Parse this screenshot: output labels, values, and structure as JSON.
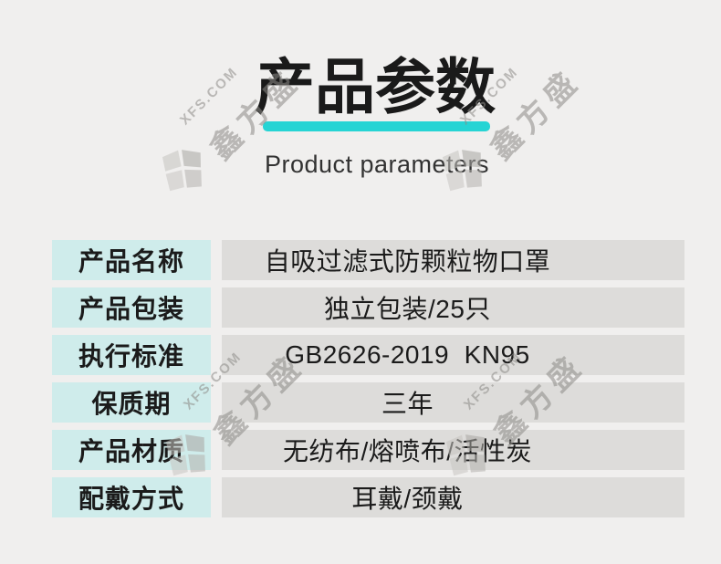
{
  "header": {
    "title": "产品参数",
    "subtitle": "Product parameters"
  },
  "table": {
    "rows": [
      {
        "label": "产品名称",
        "value": "自吸过滤式防颗粒物口罩"
      },
      {
        "label": "产品包装",
        "value": "独立包装/25只"
      },
      {
        "label": "执行标准",
        "value": "GB2626-2019  KN95"
      },
      {
        "label": "保质期",
        "value": "三年"
      },
      {
        "label": "产品材质",
        "value": "无纺布/熔喷布/活性炭"
      },
      {
        "label": "配戴方式",
        "value": "耳戴/颈戴"
      }
    ]
  },
  "watermark": {
    "brand_en": "XFS.COM",
    "brand_cn": "鑫方盛",
    "logo_icon": "pinwheel-flag-icon"
  },
  "colors": {
    "background": "#f0efee",
    "label_bg": "#cfeceb",
    "value_bg": "#dddcda",
    "accent_underline": "#26d4d4",
    "title_text": "#1a1a1a",
    "watermark": "#8d8b87"
  }
}
